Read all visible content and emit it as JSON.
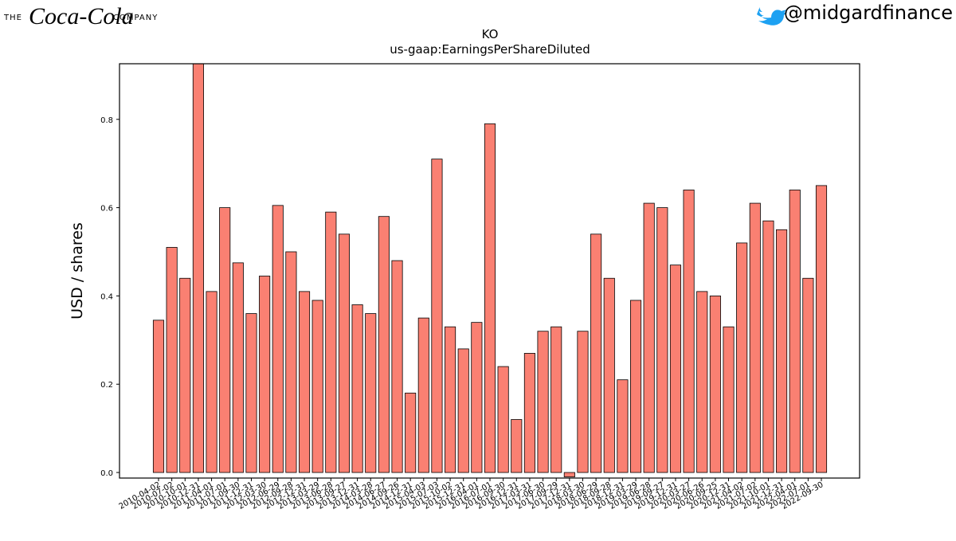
{
  "header": {
    "brand_prefix": "THE",
    "brand_name": "Coca-Cola",
    "brand_suffix": "COMPANY",
    "handle": "@midgardfinance"
  },
  "chart_data": {
    "type": "bar",
    "title": "KO",
    "subtitle": "us-gaap:EarningsPerShareDiluted",
    "y_label": "USD / shares",
    "color": "#fa8072",
    "edge_color": "#000000",
    "categories": [
      "2010-04-02",
      "2010-07-02",
      "2010-10-01",
      "2010-12-31",
      "2011-04-01",
      "2011-07-01",
      "2011-09-30",
      "2011-12-31",
      "2012-03-30",
      "2012-06-29",
      "2012-09-28",
      "2012-12-31",
      "2013-03-29",
      "2013-06-28",
      "2013-09-27",
      "2013-12-31",
      "2014-03-28",
      "2014-06-27",
      "2014-09-26",
      "2014-12-31",
      "2015-04-03",
      "2015-07-03",
      "2015-10-02",
      "2015-12-31",
      "2016-04-01",
      "2016-07-01",
      "2016-09-30",
      "2016-12-31",
      "2017-03-31",
      "2017-06-30",
      "2017-09-29",
      "2017-12-31",
      "2018-03-30",
      "2018-06-29",
      "2018-09-28",
      "2018-12-31",
      "2019-03-29",
      "2019-06-28",
      "2019-09-27",
      "2019-12-31",
      "2020-03-27",
      "2020-06-26",
      "2020-09-25",
      "2020-12-31",
      "2021-04-02",
      "2021-07-02",
      "2021-10-01",
      "2021-12-31",
      "2022-04-01",
      "2022-07-01",
      "2022-09-30"
    ],
    "values": [
      0.345,
      0.51,
      0.44,
      0.93,
      0.41,
      0.6,
      0.475,
      0.36,
      0.445,
      0.605,
      0.5,
      0.41,
      0.39,
      0.59,
      0.54,
      0.38,
      0.36,
      0.58,
      0.48,
      0.18,
      0.35,
      0.71,
      0.33,
      0.28,
      0.34,
      0.79,
      0.24,
      0.12,
      0.27,
      0.32,
      0.33,
      -0.01,
      0.32,
      0.54,
      0.44,
      0.21,
      0.39,
      0.61,
      0.6,
      0.47,
      0.64,
      0.41,
      0.4,
      0.33,
      0.52,
      0.61,
      0.57,
      0.55,
      0.64,
      0.44,
      0.65
    ],
    "ylim": [
      -0.0126,
      0.926
    ],
    "yticks": [
      {
        "value": 0,
        "label": "0.0"
      },
      0.2,
      0.4,
      0.6,
      0.8
    ]
  }
}
